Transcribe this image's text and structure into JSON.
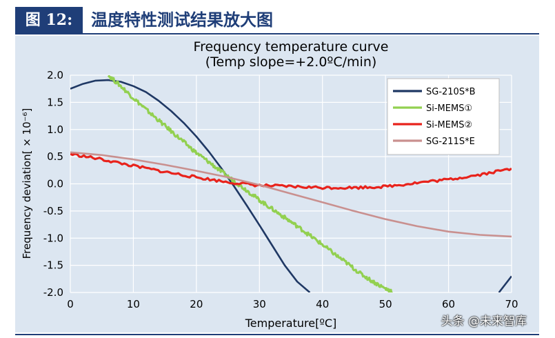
{
  "header": {
    "figure_label": "图 12:",
    "figure_title": "温度特性测试结果放大图"
  },
  "watermark": "头条 @未来智库",
  "colors": {
    "header_bg": "#1f3e78",
    "plot_bg": "#dce6f1",
    "grid": "#ffffff"
  },
  "chart_data": {
    "type": "line",
    "title": "Frequency temperature curve",
    "subtitle": "(Temp slope=+2.0ºC/min)",
    "xlabel": "Temperature[ºC]",
    "ylabel": "Frequency deviation[ × 10⁻⁶]",
    "xlim": [
      0,
      70
    ],
    "ylim": [
      -2.0,
      2.0
    ],
    "xticks": [
      "0",
      "10",
      "20",
      "30",
      "40",
      "50",
      "60",
      "70"
    ],
    "yticks": [
      "2.0",
      "1.5",
      "1.0",
      "0.5",
      "0.0",
      "-0.5",
      "-1.0",
      "-1.5",
      "-2.0"
    ],
    "grid": true,
    "legend_position": "top-right",
    "series": [
      {
        "name": "SG-210S*B",
        "color": "#1f3864",
        "x": [
          0,
          2,
          4,
          6,
          8,
          10,
          12,
          14,
          16,
          18,
          20,
          22,
          24,
          26,
          28,
          30,
          32,
          34,
          36,
          38,
          68,
          70
        ],
        "y": [
          1.75,
          1.84,
          1.9,
          1.91,
          1.88,
          1.8,
          1.69,
          1.53,
          1.34,
          1.12,
          0.87,
          0.59,
          0.28,
          -0.05,
          -0.4,
          -0.76,
          -1.13,
          -1.5,
          -1.8,
          -2.0,
          -2.0,
          -1.7
        ]
      },
      {
        "name": "Si-MEMS①",
        "color": "#92d050",
        "x": [
          6,
          8,
          10,
          12,
          14,
          16,
          18,
          20,
          22,
          24,
          26,
          28,
          30,
          32,
          34,
          36,
          38,
          40,
          42,
          44,
          46,
          48,
          50,
          51
        ],
        "y": [
          2.0,
          1.8,
          1.58,
          1.37,
          1.17,
          0.97,
          0.77,
          0.57,
          0.4,
          0.22,
          0.05,
          -0.12,
          -0.3,
          -0.46,
          -0.62,
          -0.78,
          -0.95,
          -1.12,
          -1.3,
          -1.47,
          -1.65,
          -1.8,
          -1.93,
          -1.98
        ]
      },
      {
        "name": "Si-MEMS②",
        "color": "#e8231c",
        "x": [
          0,
          5,
          10,
          15,
          20,
          25,
          30,
          35,
          40,
          45,
          50,
          55,
          60,
          65,
          70
        ],
        "y": [
          0.55,
          0.45,
          0.33,
          0.22,
          0.12,
          0.03,
          -0.03,
          -0.05,
          -0.07,
          -0.07,
          -0.05,
          0.02,
          0.08,
          0.17,
          0.28
        ]
      },
      {
        "name": "SG-211S*E",
        "color": "#c9908f",
        "x": [
          0,
          5,
          10,
          15,
          20,
          25,
          30,
          35,
          40,
          45,
          50,
          55,
          60,
          65,
          70
        ],
        "y": [
          0.58,
          0.53,
          0.45,
          0.35,
          0.24,
          0.12,
          -0.02,
          -0.18,
          -0.34,
          -0.5,
          -0.65,
          -0.78,
          -0.88,
          -0.94,
          -0.97
        ]
      }
    ]
  }
}
